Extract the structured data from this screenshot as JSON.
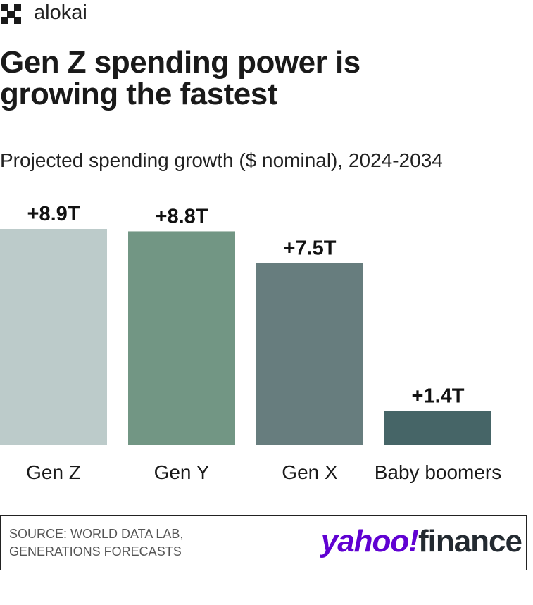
{
  "brand": "alokai",
  "source": "SOURCE: WORLD DATA LAB, GENERATIONS FORECASTS",
  "logo": {
    "yahoo": "yahoo!",
    "finance": "finance"
  },
  "chart_data": {
    "type": "bar",
    "title": "Gen Z spending power is growing the fastest",
    "subtitle": "Projected spending growth ($ nominal), 2024-2034",
    "categories": [
      "Gen Z",
      "Gen Y",
      "Gen X",
      "Baby boomers"
    ],
    "values": [
      8.9,
      8.8,
      7.5,
      1.4
    ],
    "value_labels": [
      "+8.9T",
      "+8.8T",
      "+7.5T",
      "+1.4T"
    ],
    "colors": [
      "#bccbca",
      "#729684",
      "#677d7e",
      "#466567"
    ]
  }
}
